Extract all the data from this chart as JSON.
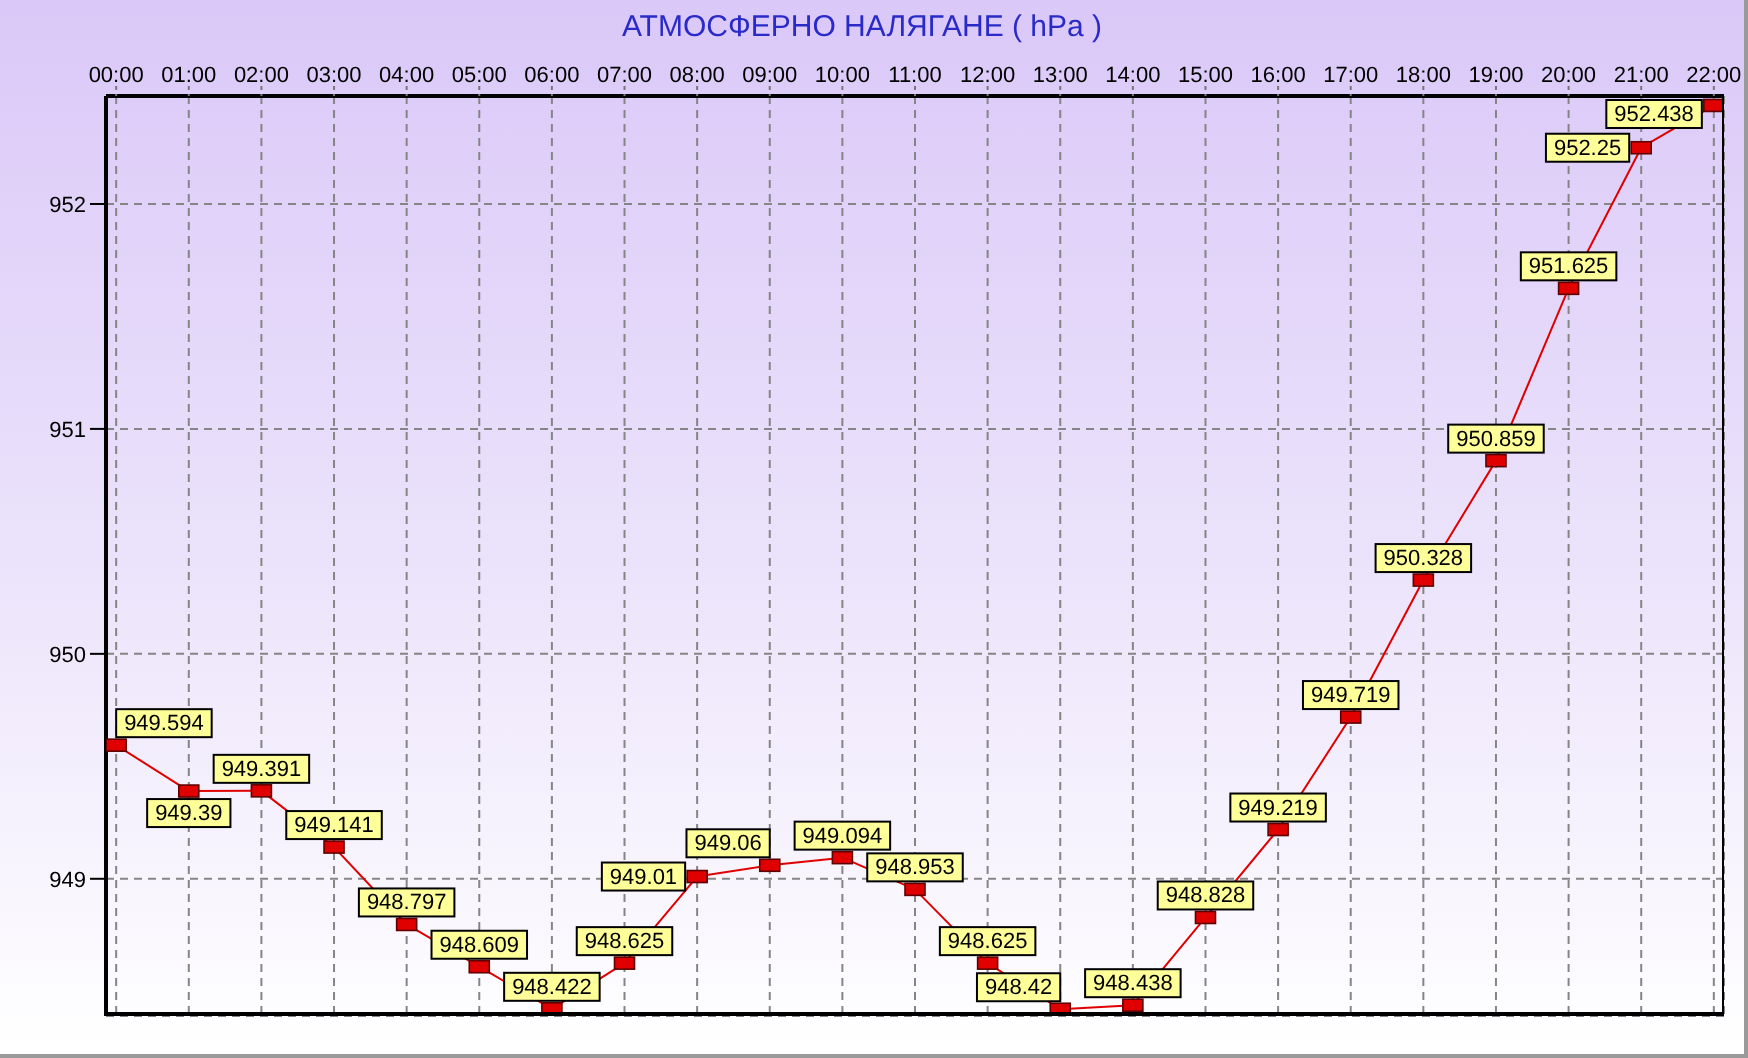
{
  "chart_data": {
    "type": "line",
    "title": "АТМОСФЕРНО НАЛЯГАНЕ ( hPa )",
    "categories": [
      "00:00",
      "01:00",
      "02:00",
      "03:00",
      "04:00",
      "05:00",
      "06:00",
      "07:00",
      "08:00",
      "09:00",
      "10:00",
      "11:00",
      "12:00",
      "13:00",
      "14:00",
      "15:00",
      "16:00",
      "17:00",
      "18:00",
      "19:00",
      "20:00",
      "21:00",
      "22:00"
    ],
    "series": [
      {
        "color": "#e00000",
        "values": [
          949.594,
          949.39,
          949.391,
          949.141,
          948.797,
          948.609,
          948.422,
          948.625,
          949.01,
          949.06,
          949.094,
          948.953,
          948.625,
          948.42,
          948.438,
          948.828,
          949.219,
          949.719,
          950.328,
          950.859,
          951.625,
          952.25,
          952.438
        ]
      }
    ],
    "ylim": [
      948.39,
      952.48
    ],
    "yticks": [
      949,
      950,
      951,
      952
    ],
    "grid": true,
    "marker": "square",
    "line_style": "solid",
    "data_labels": true
  }
}
